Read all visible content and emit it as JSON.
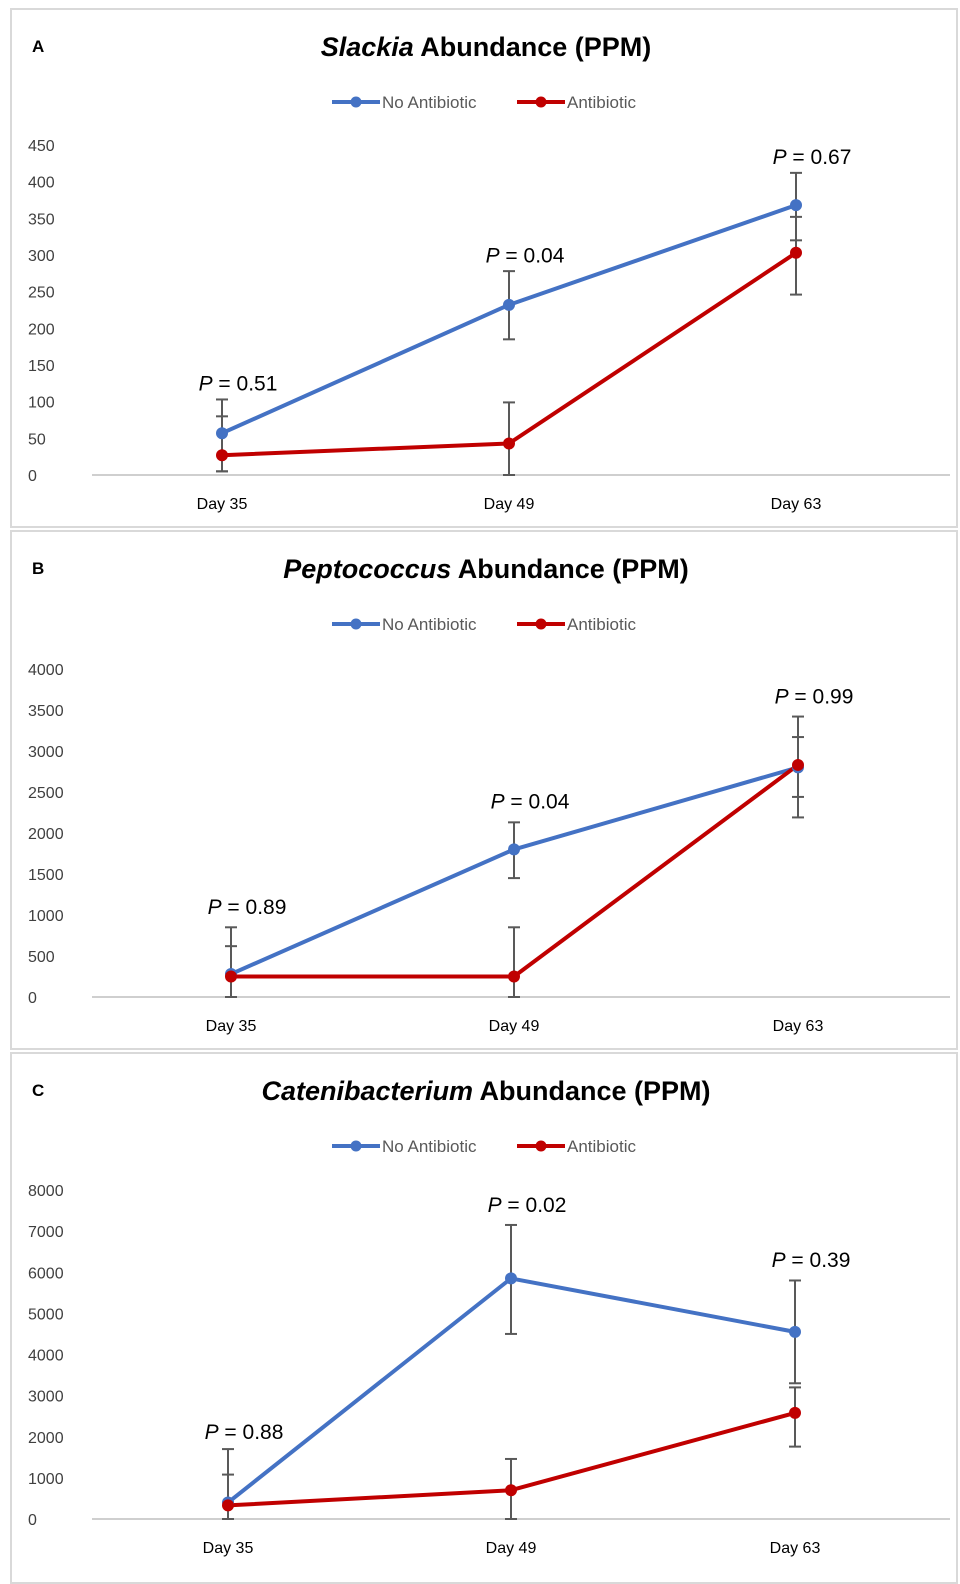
{
  "colors": {
    "no_antibiotic": "#4472c4",
    "antibiotic": "#c00000",
    "error_bar": "#595959",
    "axis": "#bfbfbf"
  },
  "chart_data": [
    {
      "type": "line",
      "panel_label": "A",
      "title_italic": "Slackia",
      "title_rest": " Abundance (PPM)",
      "categories": [
        "Day 35",
        "Day 49",
        "Day 63"
      ],
      "ylim": [
        0,
        450
      ],
      "yticks": [
        0,
        50,
        100,
        150,
        200,
        250,
        300,
        350,
        400,
        450
      ],
      "legend_position": "top",
      "series": [
        {
          "name": "No Antibiotic",
          "color": "#4472c4",
          "values": [
            57,
            232,
            368
          ],
          "err_hi": [
            103,
            278,
            412
          ],
          "err_lo": [
            5,
            185,
            320
          ]
        },
        {
          "name": "Antibiotic",
          "color": "#c00000",
          "values": [
            27,
            43,
            303
          ],
          "err_hi": [
            80,
            99,
            352
          ],
          "err_lo": [
            5,
            0,
            246
          ]
        }
      ],
      "annotations": [
        {
          "category": "Day 35",
          "p_label": "P",
          "p_value": " = 0.51",
          "y": 115
        },
        {
          "category": "Day 49",
          "p_label": "P",
          "p_value": " = 0.04",
          "y": 290
        },
        {
          "category": "Day 63",
          "p_label": "P",
          "p_value": " = 0.67",
          "y": 424
        }
      ]
    },
    {
      "type": "line",
      "panel_label": "B",
      "title_italic": "Peptococcus",
      "title_rest": " Abundance (PPM)",
      "categories": [
        "Day 35",
        "Day 49",
        "Day 63"
      ],
      "ylim": [
        0,
        4000
      ],
      "yticks": [
        0,
        500,
        1000,
        1500,
        2000,
        2500,
        3000,
        3500,
        4000
      ],
      "legend_position": "top",
      "series": [
        {
          "name": "No Antibiotic",
          "color": "#4472c4",
          "values": [
            280,
            1800,
            2800
          ],
          "err_hi": [
            850,
            2130,
            3420
          ],
          "err_lo": [
            0,
            1450,
            2190
          ]
        },
        {
          "name": "Antibiotic",
          "color": "#c00000",
          "values": [
            250,
            250,
            2830
          ],
          "err_hi": [
            620,
            850,
            3170
          ],
          "err_lo": [
            0,
            0,
            2440
          ]
        }
      ],
      "annotations": [
        {
          "category": "Day 35",
          "p_label": "P",
          "p_value": " = 0.89",
          "y": 1010
        },
        {
          "category": "Day 49",
          "p_label": "P",
          "p_value": " = 0.04",
          "y": 2300
        },
        {
          "category": "Day 63",
          "p_label": "P",
          "p_value": " = 0.99",
          "y": 3580
        }
      ]
    },
    {
      "type": "line",
      "panel_label": "C",
      "title_italic": "Catenibacterium",
      "title_rest": " Abundance (PPM)",
      "categories": [
        "Day 35",
        "Day 49",
        "Day 63"
      ],
      "ylim": [
        0,
        8000
      ],
      "yticks": [
        0,
        1000,
        2000,
        3000,
        4000,
        5000,
        6000,
        7000,
        8000
      ],
      "legend_position": "top",
      "series": [
        {
          "name": "No Antibiotic",
          "color": "#4472c4",
          "values": [
            400,
            5850,
            4550
          ],
          "err_hi": [
            1700,
            7150,
            5800
          ],
          "err_lo": [
            0,
            4500,
            3300
          ]
        },
        {
          "name": "Antibiotic",
          "color": "#c00000",
          "values": [
            330,
            700,
            2580
          ],
          "err_hi": [
            1080,
            1460,
            3200
          ],
          "err_lo": [
            0,
            0,
            1760
          ]
        }
      ],
      "annotations": [
        {
          "category": "Day 35",
          "p_label": "P",
          "p_value": " = 0.88",
          "y": 1950
        },
        {
          "category": "Day 49",
          "p_label": "P",
          "p_value": " = 0.02",
          "y": 7470
        },
        {
          "category": "Day 63",
          "p_label": "P",
          "p_value": " = 0.39",
          "y": 6130
        }
      ]
    }
  ]
}
